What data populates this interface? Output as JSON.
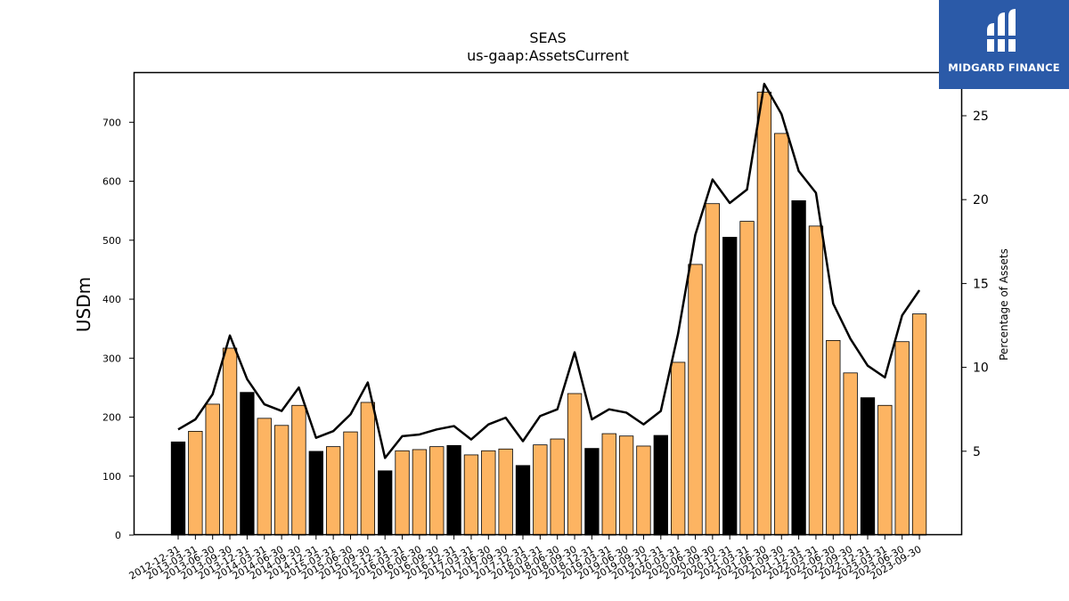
{
  "chart_data": {
    "type": "bar",
    "title": "SEAS",
    "subtitle": "us-gaap:AssetsCurrent",
    "ylabel": "USDm",
    "ylabel_right": "Percentage of Assets",
    "ylim": [
      0,
      785
    ],
    "ylim_right": [
      0,
      27.6
    ],
    "yticks": [
      0,
      100,
      200,
      300,
      400,
      500,
      600,
      700
    ],
    "yticks_right": [
      5,
      10,
      15,
      20,
      25
    ],
    "grid": false,
    "categories": [
      "2012-12-31",
      "2013-03-31",
      "2013-06-30",
      "2013-09-30",
      "2013-12-31",
      "2014-03-31",
      "2014-06-30",
      "2014-09-30",
      "2014-12-31",
      "2015-03-31",
      "2015-06-30",
      "2015-09-30",
      "2015-12-31",
      "2016-03-31",
      "2016-06-30",
      "2016-09-30",
      "2016-12-31",
      "2017-03-31",
      "2017-06-30",
      "2017-09-30",
      "2017-12-31",
      "2018-03-31",
      "2018-06-30",
      "2018-09-30",
      "2018-12-31",
      "2019-03-31",
      "2019-06-30",
      "2019-09-30",
      "2019-12-31",
      "2020-03-31",
      "2020-06-30",
      "2020-09-30",
      "2020-12-31",
      "2021-03-31",
      "2021-06-30",
      "2021-09-30",
      "2021-12-31",
      "2022-03-31",
      "2022-06-30",
      "2022-09-30",
      "2022-12-31",
      "2023-03-31",
      "2023-06-30",
      "2023-09-30"
    ],
    "series": [
      {
        "type": "bar",
        "axis": "left",
        "values": [
          158,
          176,
          222,
          317,
          242,
          198,
          186,
          220,
          142,
          150,
          175,
          225,
          109,
          143,
          145,
          150,
          152,
          136,
          143,
          146,
          118,
          153,
          163,
          240,
          147,
          172,
          168,
          151,
          169,
          293,
          459,
          562,
          505,
          532,
          751,
          681,
          567,
          524,
          330,
          275,
          233,
          220,
          328,
          375
        ],
        "highlight": [
          true,
          false,
          false,
          false,
          true,
          false,
          false,
          false,
          true,
          false,
          false,
          false,
          true,
          false,
          false,
          false,
          true,
          false,
          false,
          false,
          true,
          false,
          false,
          false,
          true,
          false,
          false,
          false,
          true,
          false,
          false,
          false,
          true,
          false,
          false,
          false,
          true,
          false,
          false,
          false,
          true,
          false,
          false,
          false
        ],
        "color": "#fdb462",
        "highlight_color": "#000000"
      },
      {
        "type": "line",
        "axis": "right",
        "color": "#000000",
        "values": [
          6.3,
          6.9,
          8.4,
          11.9,
          9.3,
          7.8,
          7.4,
          8.8,
          5.8,
          6.2,
          7.2,
          9.1,
          4.6,
          5.9,
          6.0,
          6.3,
          6.5,
          5.7,
          6.6,
          7.0,
          5.6,
          7.1,
          7.5,
          10.9,
          6.9,
          7.5,
          7.3,
          6.6,
          7.4,
          12.0,
          17.9,
          21.2,
          19.8,
          20.6,
          26.9,
          25.1,
          21.7,
          20.4,
          13.8,
          11.7,
          10.1,
          9.4,
          13.1,
          14.6
        ]
      }
    ]
  },
  "logo": {
    "text": "MIDGARD FINANCE",
    "color": "#2b5aa8"
  }
}
